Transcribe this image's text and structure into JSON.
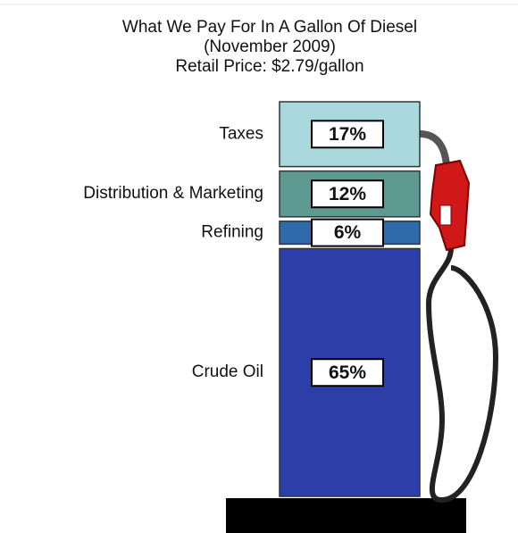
{
  "chart_data": {
    "type": "stacked-bar",
    "title": "What We Pay For In A Gallon Of Diesel",
    "subtitle": "(November 2009)",
    "price_label": "Retail Price: $2.79/gallon",
    "categories": [
      "Taxes",
      "Distribution & Marketing",
      "Refining",
      "Crude Oil"
    ],
    "values": [
      17,
      12,
      6,
      65
    ],
    "value_labels": [
      "17%",
      "12%",
      "6%",
      "65%"
    ],
    "colors": [
      "#a9d9dc",
      "#5e9a92",
      "#2f6aaa",
      "#2c3ea8"
    ]
  }
}
